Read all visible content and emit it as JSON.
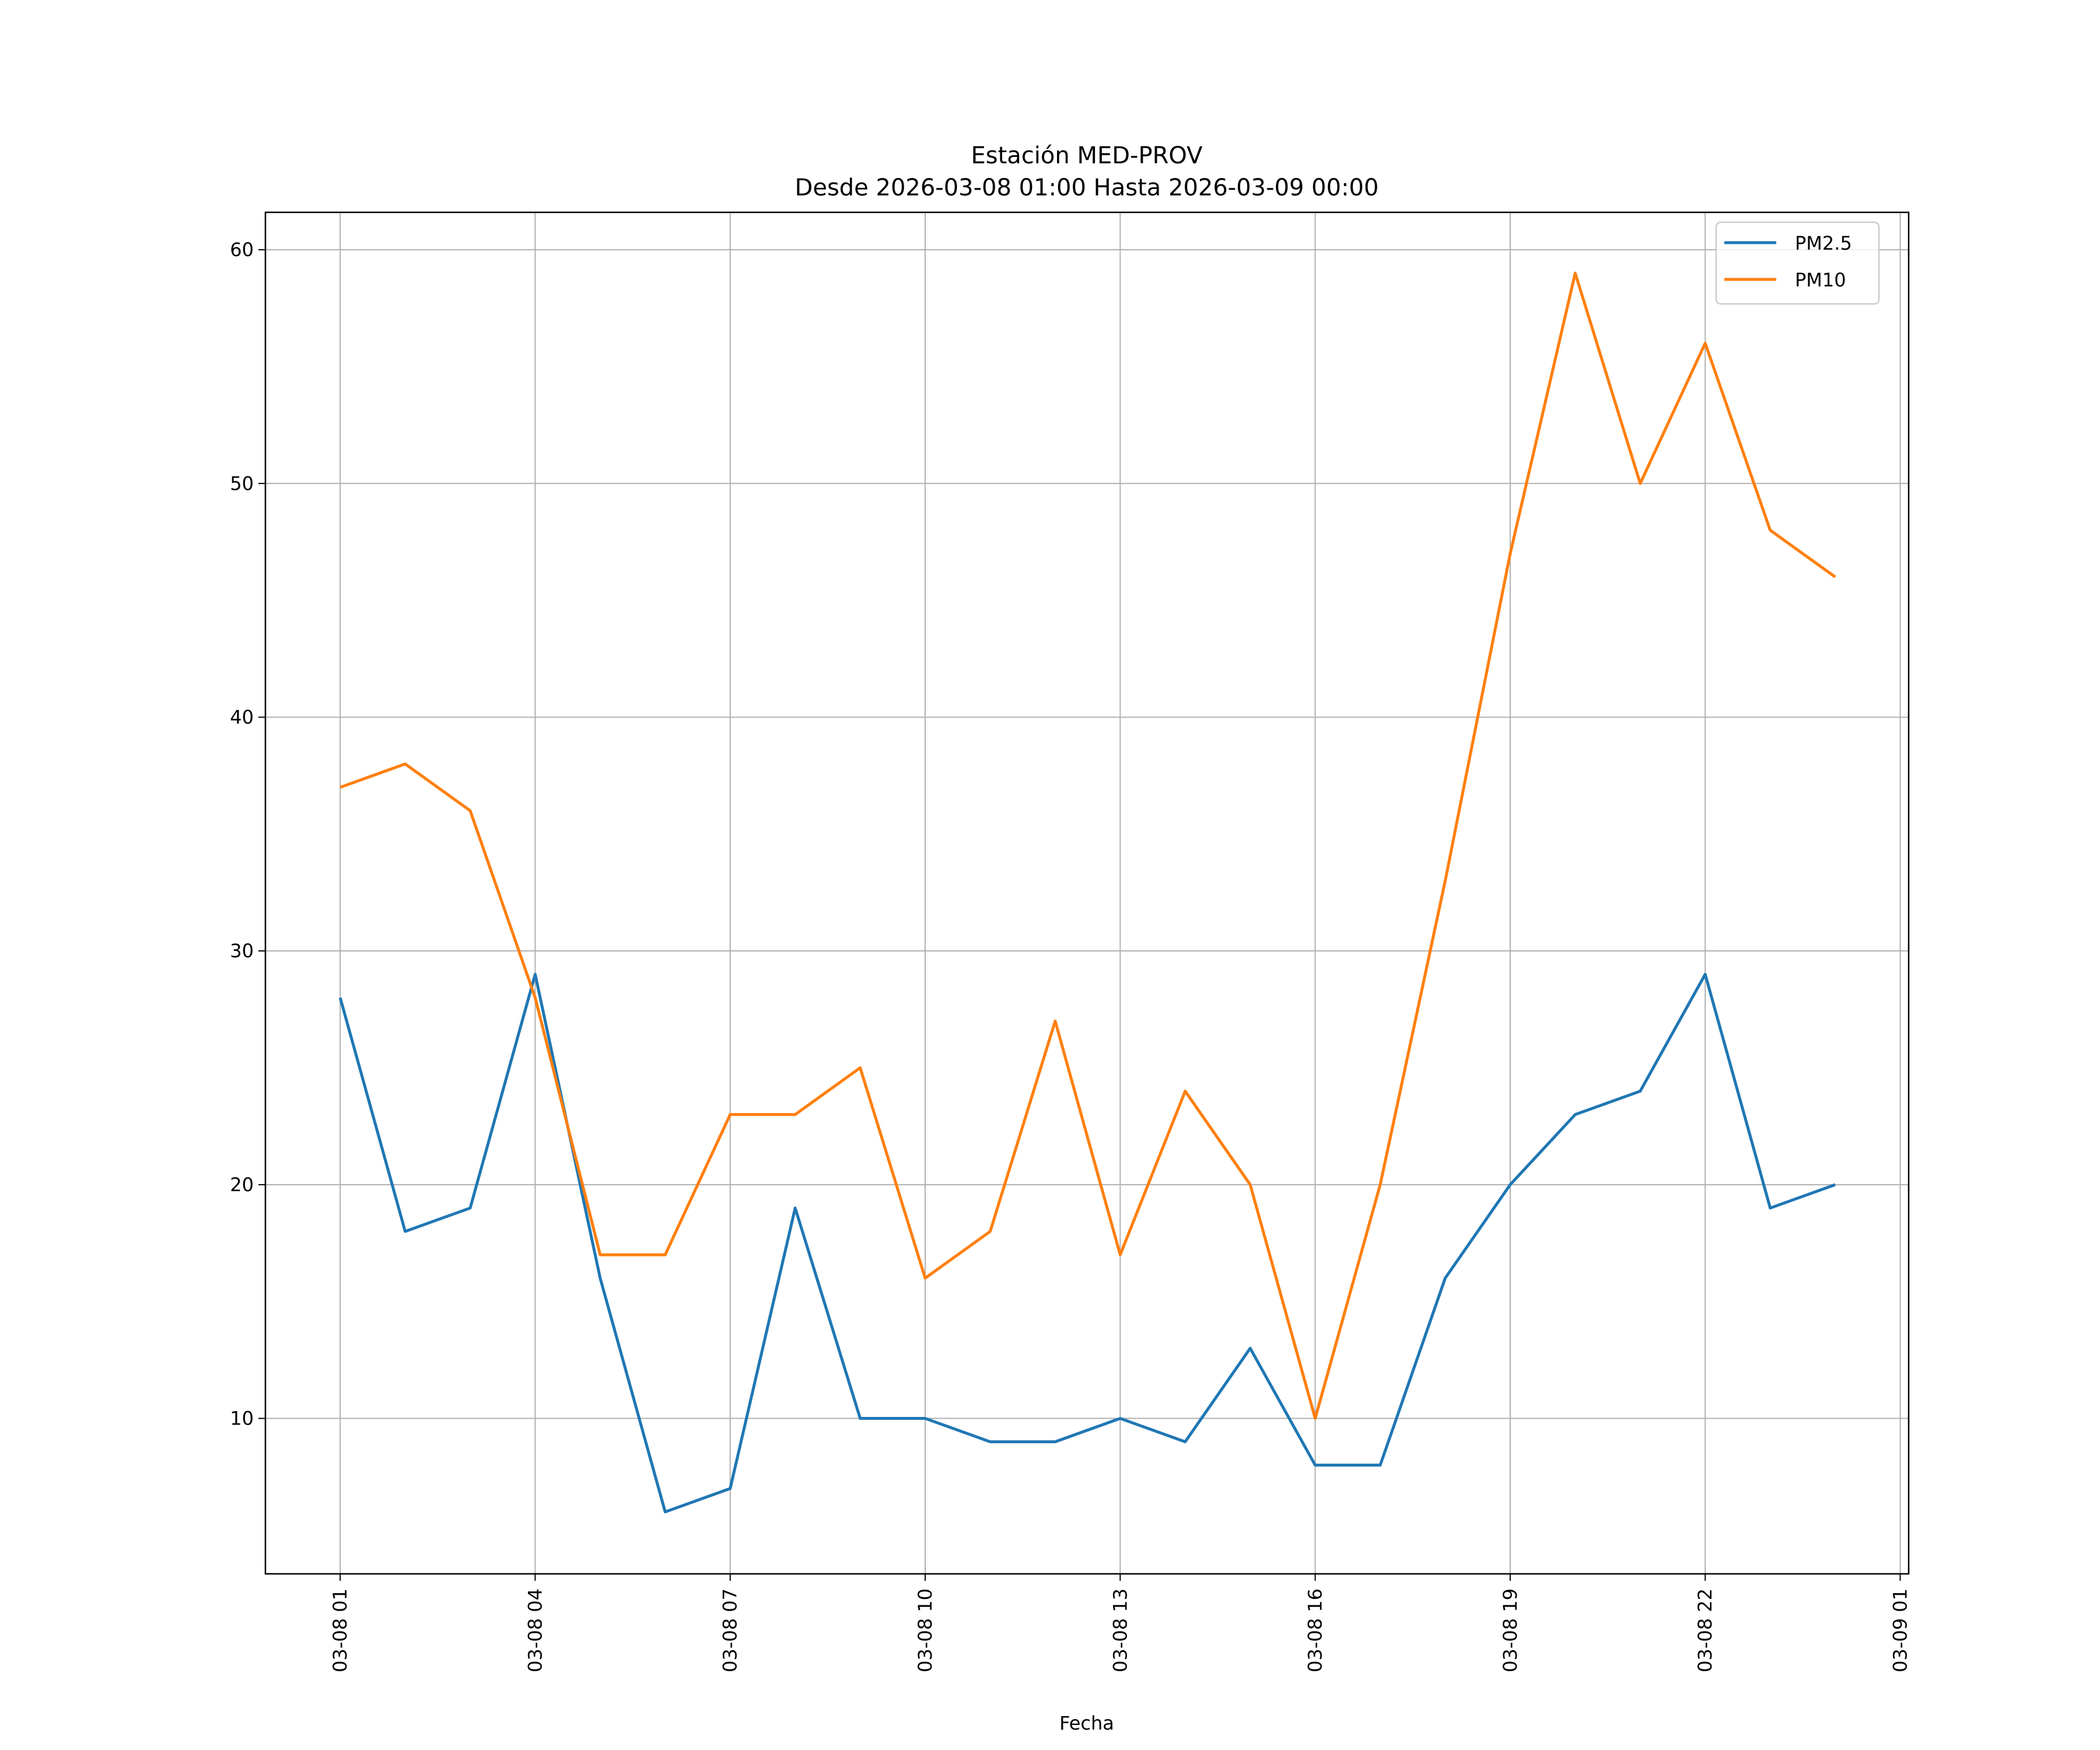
{
  "chart_data": {
    "type": "line",
    "title": "Estación MED-PROV",
    "subtitle": "Desde 2026-03-08 01:00 Hasta 2026-03-09 00:00",
    "xlabel": "Fecha",
    "ylabel": "",
    "x_hours": [
      0,
      1,
      2,
      3,
      4,
      5,
      6,
      7,
      8,
      9,
      10,
      11,
      12,
      13,
      14,
      15,
      16,
      17,
      18,
      19,
      20,
      21,
      22,
      23
    ],
    "xlim_hours": [
      -1.15,
      24.13
    ],
    "xticks": [
      {
        "hour": 0,
        "label": "03-08 01"
      },
      {
        "hour": 3,
        "label": "03-08 04"
      },
      {
        "hour": 6,
        "label": "03-08 07"
      },
      {
        "hour": 9,
        "label": "03-08 10"
      },
      {
        "hour": 12,
        "label": "03-08 13"
      },
      {
        "hour": 15,
        "label": "03-08 16"
      },
      {
        "hour": 18,
        "label": "03-08 19"
      },
      {
        "hour": 21,
        "label": "03-08 22"
      },
      {
        "hour": 24,
        "label": "03-09 01"
      }
    ],
    "yticks": [
      10,
      20,
      30,
      40,
      50,
      60
    ],
    "ylim": [
      3.35,
      61.6
    ],
    "grid": true,
    "legend_position": "top-right",
    "series": [
      {
        "name": "PM2.5",
        "color": "#1f77b4",
        "values": [
          28,
          18,
          19,
          29,
          16,
          6,
          7,
          19,
          10,
          10,
          9,
          9,
          10,
          9,
          13,
          8,
          8,
          16,
          20,
          23,
          24,
          29,
          19,
          20
        ]
      },
      {
        "name": "PM10",
        "color": "#ff7f0e",
        "values": [
          37,
          38,
          36,
          28,
          17,
          17,
          23,
          23,
          25,
          16,
          18,
          27,
          17,
          24,
          20,
          10,
          20,
          33,
          47,
          59,
          50,
          56,
          48,
          46
        ]
      }
    ]
  }
}
